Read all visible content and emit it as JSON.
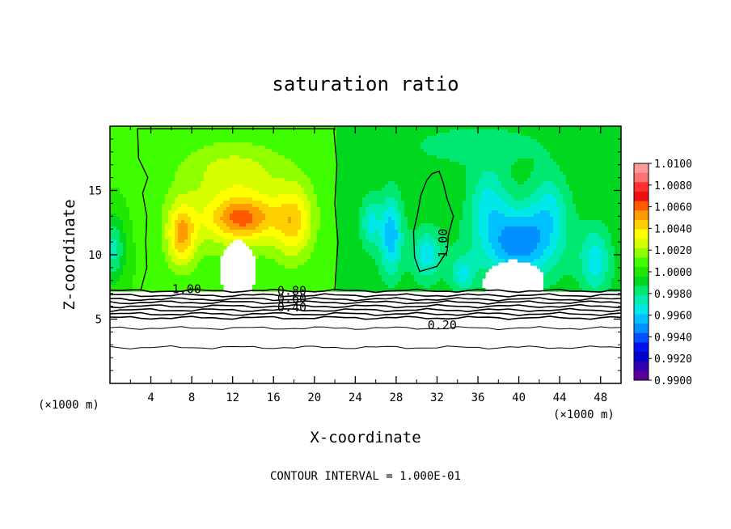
{
  "chart_data": {
    "type": "heatmap",
    "title": "saturation ratio",
    "xlabel": "X-coordinate",
    "ylabel": "Z-coordinate",
    "x_unit_left": "(×1000 m)",
    "x_unit_right": "(×1000 m)",
    "footer": "CONTOUR INTERVAL = 1.000E-01",
    "xlim": [
      0,
      50
    ],
    "ylim": [
      0,
      20
    ],
    "x_ticks": [
      4,
      8,
      12,
      16,
      20,
      24,
      28,
      32,
      36,
      40,
      44,
      48
    ],
    "y_ticks": [
      5,
      10,
      15
    ],
    "colorbar": {
      "levels": [
        "1.0100",
        "1.0080",
        "1.0060",
        "1.0040",
        "1.0020",
        "1.0000",
        "0.9980",
        "0.9960",
        "0.9940",
        "0.9920",
        "0.9900"
      ],
      "colors": [
        "#ff9a9a",
        "#ff7070",
        "#ff3030",
        "#ee1010",
        "#ff5a00",
        "#ff9a00",
        "#ffd000",
        "#ffff00",
        "#d8ff00",
        "#90ff00",
        "#40ff00",
        "#20e800",
        "#00d820",
        "#00e870",
        "#00ecb0",
        "#00e8e8",
        "#00c0ff",
        "#0090ff",
        "#0050ff",
        "#0010ee",
        "#0000c8",
        "#3000b0",
        "#5a009a"
      ]
    },
    "contour_labels": [
      {
        "text": "1.00",
        "x": 7.5,
        "y": 7.0
      },
      {
        "text": "1.00",
        "x": 33.0,
        "y": 10.9
      },
      {
        "text": "0.80",
        "x": 17.8,
        "y": 6.9
      },
      {
        "text": "0.60",
        "x": 17.8,
        "y": 6.3
      },
      {
        "text": "0.40",
        "x": 17.8,
        "y": 5.6
      },
      {
        "text": "0.20",
        "x": 32.5,
        "y": 4.2
      }
    ]
  }
}
